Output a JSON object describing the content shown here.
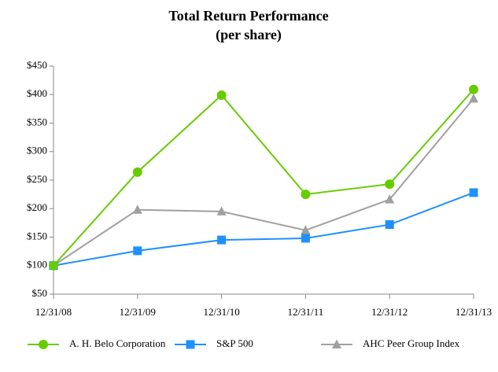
{
  "chart_data": {
    "type": "line",
    "title": "Total Return Performance",
    "subtitle": "(per share)",
    "categories": [
      "12/31/08",
      "12/31/09",
      "12/31/10",
      "12/31/11",
      "12/31/12",
      "12/31/13"
    ],
    "series": [
      {
        "name": "A. H. Belo Corporation",
        "color": "#66cc00",
        "marker": "circle",
        "values": [
          100,
          264,
          399,
          225,
          243,
          409
        ]
      },
      {
        "name": "S&P 500",
        "color": "#1e90ff",
        "marker": "square",
        "values": [
          100,
          126,
          145,
          148,
          172,
          228
        ]
      },
      {
        "name": "AHC Peer Group Index",
        "color": "#a0a0a0",
        "marker": "triangle",
        "values": [
          100,
          198,
          195,
          162,
          216,
          393
        ]
      }
    ],
    "ylim": [
      50,
      450
    ],
    "yticks": [
      {
        "value": 50,
        "label": "$50"
      },
      {
        "value": 100,
        "label": "$100"
      },
      {
        "value": 150,
        "label": "$150"
      },
      {
        "value": 200,
        "label": "$200"
      },
      {
        "value": 250,
        "label": "$250"
      },
      {
        "value": 300,
        "label": "$300"
      },
      {
        "value": 350,
        "label": "$350"
      },
      {
        "value": 400,
        "label": "$400"
      },
      {
        "value": 450,
        "label": "$450"
      }
    ],
    "grid": false,
    "legend": "bottom"
  }
}
